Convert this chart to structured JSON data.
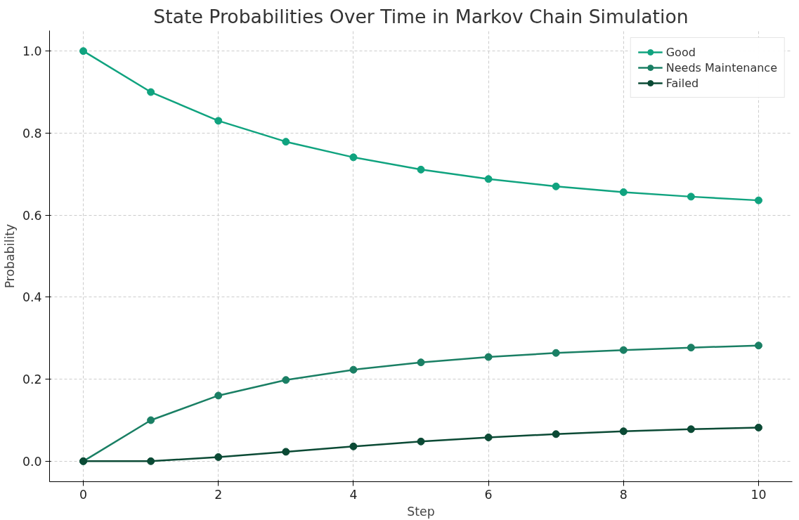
{
  "chart_data": {
    "type": "line",
    "title": "State Probabilities Over Time in Markov Chain Simulation",
    "xlabel": "Step",
    "ylabel": "Probability",
    "x": [
      0,
      1,
      2,
      3,
      4,
      5,
      6,
      7,
      8,
      9,
      10
    ],
    "series": [
      {
        "name": "Good",
        "color": "#10a37f",
        "values": [
          1.0,
          0.9,
          0.83,
          0.779,
          0.741,
          0.711,
          0.688,
          0.67,
          0.656,
          0.645,
          0.636
        ]
      },
      {
        "name": "Needs Maintenance",
        "color": "#1a7f64",
        "values": [
          0,
          0.1,
          0.16,
          0.198,
          0.223,
          0.241,
          0.254,
          0.264,
          0.271,
          0.277,
          0.282
        ]
      },
      {
        "name": "Failed",
        "color": "#0b4a35",
        "values": [
          0,
          0,
          0.01,
          0.023,
          0.036,
          0.048,
          0.058,
          0.066,
          0.073,
          0.078,
          0.082
        ]
      }
    ],
    "xlim": [
      -0.5,
      10.5
    ],
    "ylim": [
      -0.05,
      1.05
    ],
    "xticks": [
      0,
      2,
      4,
      6,
      8,
      10
    ],
    "yticks": [
      {
        "value": 0,
        "label": "0.0"
      },
      {
        "value": 0.2,
        "label": "0.2"
      },
      {
        "value": 0.4,
        "label": "0.4"
      },
      {
        "value": 0.6,
        "label": "0.6"
      },
      {
        "value": 0.8,
        "label": "0.8"
      },
      {
        "value": 1.0,
        "label": "1.0"
      }
    ],
    "grid": true,
    "legend": "top right",
    "marker": "circle",
    "line_style": "solid"
  }
}
